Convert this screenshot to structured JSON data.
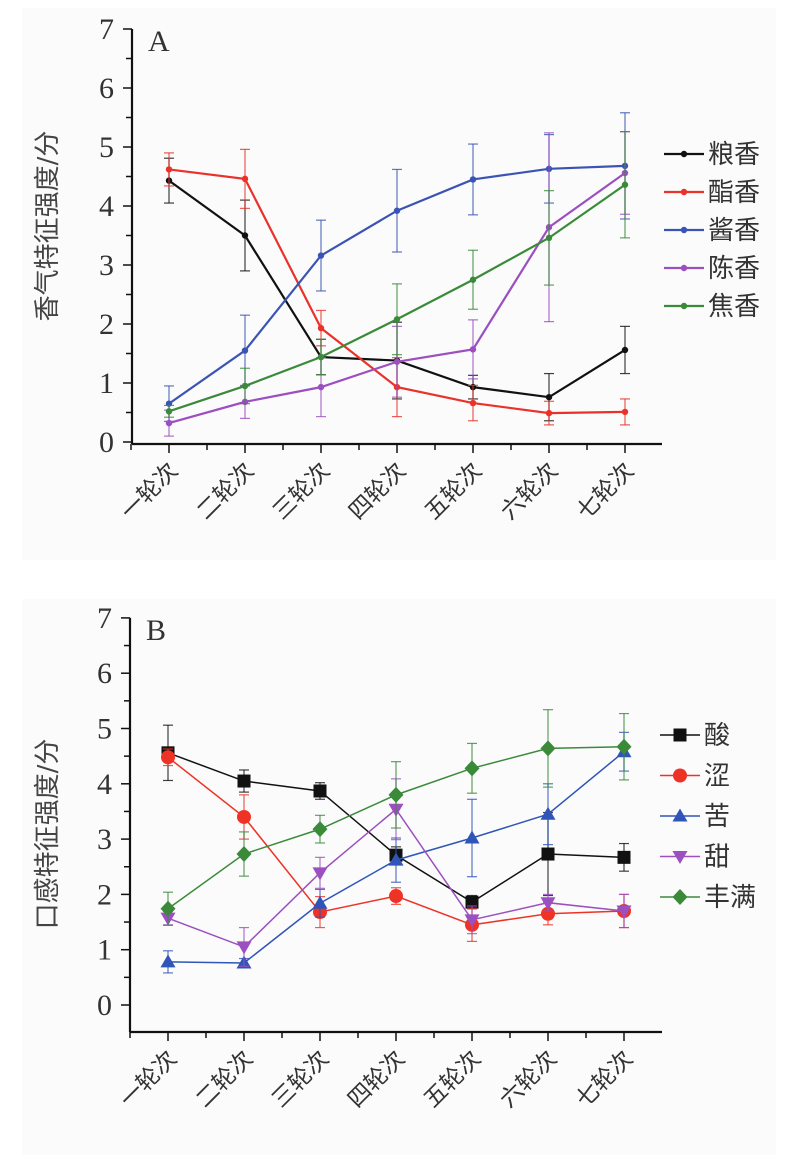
{
  "chart_data": [
    {
      "type": "line",
      "panel_label": "A",
      "ylabel": "香气特征强度/分",
      "xlabel": "",
      "ylim": [
        0,
        7
      ],
      "yticks": [
        "0",
        "1",
        "2",
        "3",
        "4",
        "5",
        "6",
        "7"
      ],
      "categories": [
        "一轮次",
        "二轮次",
        "三轮次",
        "四轮次",
        "五轮次",
        "六轮次",
        "七轮次"
      ],
      "legend_position": "right",
      "grid": false,
      "series": [
        {
          "name": "粮香",
          "color": "#111111",
          "marker": "dot",
          "values": [
            4.43,
            3.5,
            1.44,
            1.38,
            0.93,
            0.76,
            1.56
          ],
          "errors": [
            0.38,
            0.6,
            0.3,
            0.65,
            0.2,
            0.4,
            0.4
          ]
        },
        {
          "name": "酯香",
          "color": "#e8322a",
          "marker": "dot",
          "values": [
            4.62,
            4.46,
            1.93,
            0.93,
            0.66,
            0.49,
            0.51
          ],
          "errors": [
            0.28,
            0.5,
            0.3,
            0.5,
            0.3,
            0.2,
            0.22
          ]
        },
        {
          "name": "酱香",
          "color": "#3b54b4",
          "marker": "dot",
          "values": [
            0.65,
            1.55,
            3.16,
            3.92,
            4.45,
            4.63,
            4.68
          ],
          "errors": [
            0.3,
            0.6,
            0.6,
            0.7,
            0.6,
            0.58,
            0.9
          ]
        },
        {
          "name": "陈香",
          "color": "#9b4fc0",
          "marker": "dot",
          "values": [
            0.32,
            0.68,
            0.93,
            1.36,
            1.57,
            3.64,
            4.56
          ],
          "errors": [
            0.22,
            0.28,
            0.5,
            0.6,
            0.5,
            1.6,
            0.7
          ]
        },
        {
          "name": "焦香",
          "color": "#3a8a3a",
          "marker": "dot",
          "values": [
            0.52,
            0.95,
            1.44,
            2.08,
            2.75,
            3.46,
            4.36
          ],
          "errors": [
            0.1,
            0.3,
            0.3,
            0.6,
            0.5,
            0.8,
            0.9
          ]
        }
      ]
    },
    {
      "type": "line",
      "panel_label": "B",
      "ylabel": "口感特征强度/分",
      "xlabel": "",
      "ylim": [
        0,
        7
      ],
      "yticks": [
        "0",
        "1",
        "2",
        "3",
        "4",
        "5",
        "6",
        "7"
      ],
      "categories": [
        "一轮次",
        "二轮次",
        "三轮次",
        "四轮次",
        "五轮次",
        "六轮次",
        "七轮次"
      ],
      "legend_position": "right",
      "grid": false,
      "series": [
        {
          "name": "酸",
          "color": "#111111",
          "marker": "square",
          "values": [
            4.56,
            4.05,
            3.87,
            2.71,
            1.86,
            2.73,
            2.67
          ],
          "errors": [
            0.5,
            0.2,
            0.15,
            0.15,
            0.12,
            0.75,
            0.25
          ]
        },
        {
          "name": "涩",
          "color": "#ee3326",
          "marker": "circle",
          "values": [
            4.48,
            3.4,
            1.68,
            1.97,
            1.45,
            1.65,
            1.7
          ],
          "errors": [
            0.15,
            0.4,
            0.28,
            0.15,
            0.3,
            0.2,
            0.3
          ]
        },
        {
          "name": "苦",
          "color": "#2f55b8",
          "marker": "triangle-up",
          "values": [
            0.78,
            0.76,
            1.84,
            2.62,
            3.02,
            3.45,
            4.58
          ],
          "errors": [
            0.2,
            0.08,
            0.25,
            0.4,
            0.7,
            0.55,
            0.35
          ]
        },
        {
          "name": "甜",
          "color": "#9b4fc0",
          "marker": "triangle-down",
          "values": [
            1.57,
            1.05,
            2.39,
            3.54,
            1.54,
            1.85,
            1.7
          ],
          "errors": [
            0.12,
            0.35,
            0.28,
            0.55,
            0.25,
            0.15,
            0.3
          ]
        },
        {
          "name": "丰满",
          "color": "#3a8a3a",
          "marker": "diamond",
          "values": [
            1.74,
            2.73,
            3.18,
            3.8,
            4.28,
            4.64,
            4.67
          ],
          "errors": [
            0.3,
            0.4,
            0.25,
            0.6,
            0.45,
            0.7,
            0.6
          ]
        }
      ]
    }
  ]
}
